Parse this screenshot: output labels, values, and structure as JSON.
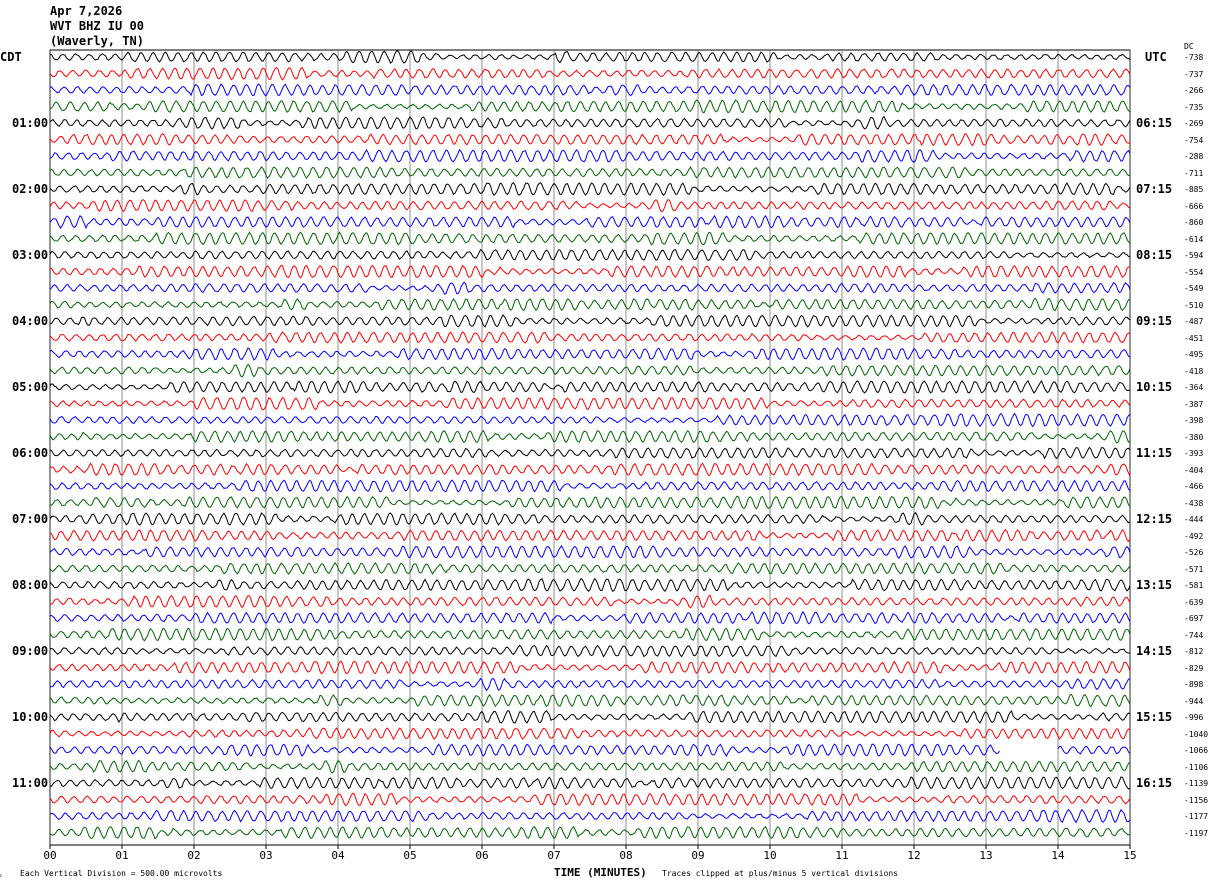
{
  "header": {
    "date": "Apr 7,2026",
    "station": "WVT BHZ IU 00",
    "location": "(Waverly, TN)"
  },
  "left_tz": "CDT",
  "right_tz": "UTC",
  "dc_label": "DC",
  "chart_data": {
    "type": "line",
    "title": "WVT BHZ IU 00 helicorder",
    "xlabel": "TIME (MINUTES)",
    "xlim": [
      0,
      15
    ],
    "x_ticks": [
      "00",
      "01",
      "02",
      "03",
      "04",
      "05",
      "06",
      "07",
      "08",
      "09",
      "10",
      "11",
      "12",
      "13",
      "14",
      "15"
    ],
    "left_hour_labels": [
      "01:00",
      "02:00",
      "03:00",
      "04:00",
      "05:00",
      "06:00",
      "07:00",
      "08:00",
      "09:00",
      "10:00",
      "11:00"
    ],
    "right_hour_labels": [
      "06:15",
      "07:15",
      "08:15",
      "09:15",
      "10:15",
      "11:15",
      "12:15",
      "13:15",
      "14:15",
      "15:15",
      "16:15"
    ],
    "trace_colors": [
      "#000000",
      "#ff0000",
      "#0000ff",
      "#006400"
    ],
    "rows": 48,
    "dc_offsets": [
      -738,
      -737,
      -266,
      -735,
      -269,
      -754,
      -288,
      -711,
      -885,
      -666,
      -860,
      -614,
      -594,
      -554,
      -549,
      -510,
      -487,
      -451,
      -495,
      -418,
      -364,
      -387,
      -398,
      -380,
      -393,
      -404,
      -466,
      -438,
      -444,
      -492,
      -526,
      -571,
      -581,
      -639,
      -697,
      -744,
      -812,
      -829,
      -898,
      -944,
      -996,
      -1040,
      -1066,
      -1106,
      -1139,
      -1156,
      -1177,
      -1197
    ],
    "gaps": [
      {
        "row": 42,
        "from_min": 13.2,
        "to_min": 14.0
      }
    ]
  },
  "footer": {
    "scale": "Each Vertical Division =  500.00 microvolts",
    "clip": "Traces clipped at plus/minus 5 vertical divisions"
  }
}
